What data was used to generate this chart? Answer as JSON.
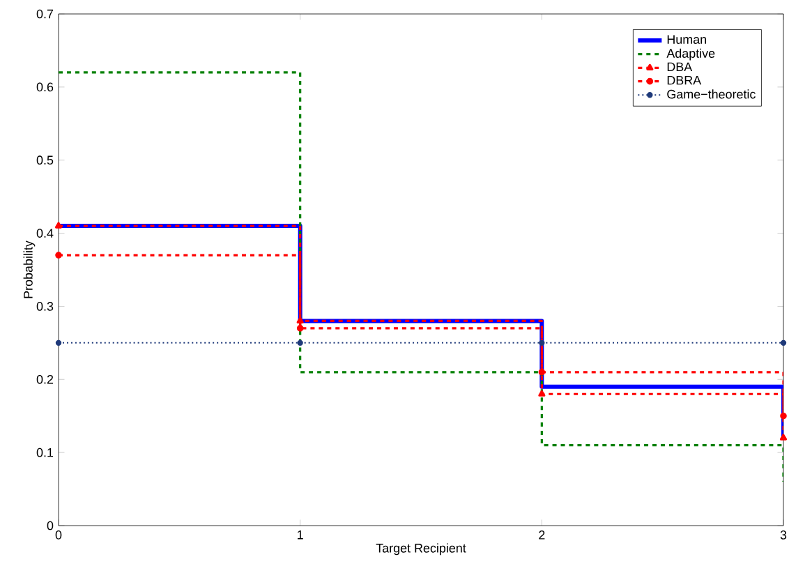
{
  "chart_data": {
    "type": "step",
    "xlabel": "Target Recipient",
    "ylabel": "Probability",
    "x": [
      0,
      1,
      2,
      3
    ],
    "series": [
      {
        "name": "Human",
        "color": "#0000ff",
        "values": [
          0.41,
          0.28,
          0.19,
          0.12
        ],
        "line_style": "solid",
        "marker": "none"
      },
      {
        "name": "Adaptive",
        "color": "#008000",
        "values": [
          0.62,
          0.21,
          0.11,
          0.06
        ],
        "line_style": "dashed",
        "marker": "none"
      },
      {
        "name": "DBA",
        "color": "#ff0000",
        "values": [
          0.41,
          0.28,
          0.18,
          0.12
        ],
        "line_style": "dashed",
        "marker": "triangle"
      },
      {
        "name": "DBRA",
        "color": "#ff0000",
        "values": [
          0.37,
          0.27,
          0.21,
          0.15
        ],
        "line_style": "dashed",
        "marker": "circle"
      },
      {
        "name": "Game−theoretic",
        "color": "#1f3a7a",
        "values": [
          0.25,
          0.25,
          0.25,
          0.25
        ],
        "line_style": "dotted",
        "marker": "circle"
      }
    ],
    "xlim": [
      0,
      3
    ],
    "ylim": [
      0,
      0.7
    ],
    "xticks": [
      0,
      1,
      2,
      3
    ],
    "yticks": [
      0,
      0.1,
      0.2,
      0.3,
      0.4,
      0.5,
      0.6,
      0.7
    ],
    "grid": false,
    "legend": "top right"
  }
}
